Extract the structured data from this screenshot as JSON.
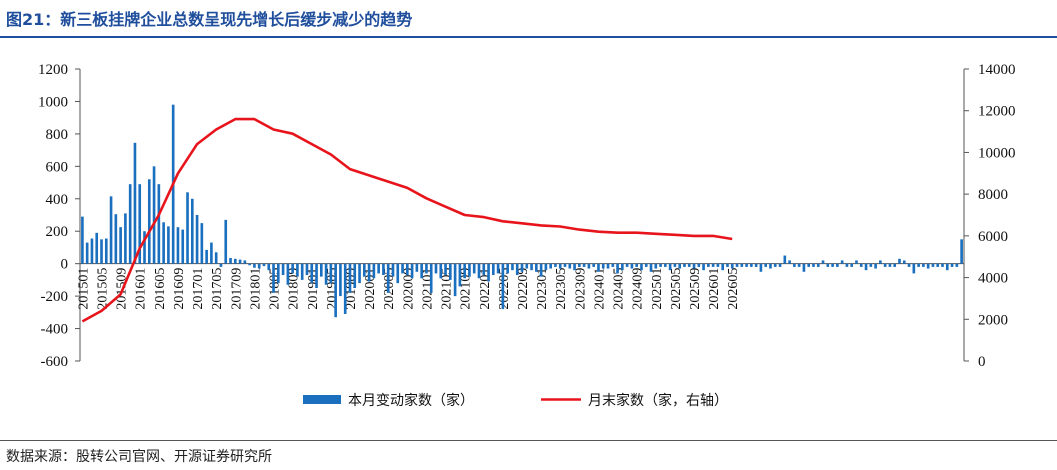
{
  "title": "图21：新三板挂牌企业总数呈现先增长后缓步减少的趋势",
  "source": "数据来源：股转公司官网、开源证券研究所",
  "colors": {
    "bar": "#1a6fbf",
    "line": "#e8141c",
    "title": "#1f4e9c"
  },
  "chart_data": {
    "type": "bar+line",
    "title": "图21：新三板挂牌企业总数呈现先增长后缓步减少的趋势",
    "xlabel": "",
    "ylabel": "",
    "y_left": {
      "lim": [
        -600,
        1200
      ],
      "ticks": [
        -600,
        -400,
        -200,
        0,
        200,
        400,
        600,
        800,
        1000,
        1200
      ]
    },
    "y_right": {
      "lim": [
        0,
        14000
      ],
      "ticks": [
        0,
        2000,
        4000,
        6000,
        8000,
        10000,
        12000,
        14000
      ]
    },
    "x_tick_labels": [
      "201501",
      "201505",
      "201509",
      "201601",
      "201605",
      "201609",
      "201701",
      "201705",
      "201709",
      "201801",
      "201805",
      "201809",
      "201901",
      "201905",
      "201909",
      "202001",
      "202005",
      "202009",
      "202101",
      "202105",
      "202109",
      "202201",
      "202205",
      "202209",
      "202301",
      "202305",
      "202309",
      "202401",
      "202405",
      "202409",
      "202501",
      "202505",
      "202509",
      "202601",
      "202605"
    ],
    "legend": {
      "position": "bottom",
      "bar_label": "本月变动家数（家）",
      "line_label": "月末家数（家，右轴）"
    },
    "series": [
      {
        "name": "本月变动家数（家）",
        "axis": "left",
        "type": "bar",
        "values": [
          290,
          130,
          155,
          190,
          150,
          155,
          415,
          305,
          225,
          310,
          490,
          745,
          490,
          200,
          520,
          600,
          490,
          255,
          230,
          980,
          225,
          210,
          440,
          400,
          300,
          250,
          85,
          130,
          70,
          -20,
          270,
          35,
          30,
          25,
          20,
          -10,
          -25,
          -30,
          -15,
          -40,
          -180,
          -120,
          -70,
          -130,
          -60,
          -80,
          -100,
          -70,
          -120,
          -150,
          -80,
          -130,
          -120,
          -330,
          -200,
          -310,
          -180,
          -150,
          -120,
          -80,
          -110,
          -90,
          -60,
          -70,
          -180,
          -80,
          -120,
          -60,
          -70,
          -90,
          -50,
          -90,
          -60,
          -180,
          -60,
          -90,
          -70,
          -100,
          -200,
          -140,
          -90,
          -80,
          -60,
          -90,
          -70,
          -110,
          -70,
          -60,
          -280,
          -60,
          -40,
          -70,
          -50,
          -30,
          -40,
          -50,
          -80,
          -40,
          -30,
          -20,
          -30,
          -20,
          -30,
          -40,
          -20,
          -20,
          -30,
          -20,
          -50,
          -30,
          -30,
          -20,
          -60,
          -40,
          -20,
          -30,
          -20,
          -40,
          -20,
          -50,
          -30,
          -20,
          -20,
          -40,
          -20,
          -30,
          -20,
          -20,
          -30,
          -20,
          -40,
          -20,
          -20,
          -20,
          -40,
          -20,
          -30,
          -20,
          -20,
          -20,
          -20,
          -20,
          -50,
          -20,
          -30,
          -20,
          -20,
          50,
          20,
          -20,
          -20,
          -50,
          -20,
          -20,
          -20,
          20,
          -20,
          -20,
          -20,
          20,
          -20,
          -20,
          20,
          -20,
          -40,
          -20,
          -30,
          20,
          -20,
          -20,
          -20,
          30,
          20,
          -20,
          -60,
          -20,
          -20,
          -30,
          -20,
          -20,
          -20,
          -40,
          -20,
          -20,
          150
        ]
      },
      {
        "name": "月末家数（家，右轴）",
        "axis": "right",
        "type": "line",
        "x_ticks": [
          0,
          4,
          8,
          12,
          16,
          20,
          24,
          28,
          32,
          36,
          40,
          44,
          48,
          52,
          56,
          60,
          64,
          68,
          72,
          76,
          80,
          84,
          88,
          92,
          96,
          100,
          104,
          108,
          112,
          116,
          120,
          124,
          128,
          132,
          136
        ],
        "values": [
          1900,
          2400,
          3200,
          5400,
          7000,
          9000,
          10400,
          11100,
          11600,
          11600,
          11100,
          10900,
          10400,
          9900,
          9200,
          8900,
          8600,
          8300,
          7800,
          7400,
          7000,
          6900,
          6700,
          6600,
          6500,
          6450,
          6300,
          6200,
          6150,
          6150,
          6100,
          6050,
          6000,
          6000,
          5850
        ]
      }
    ]
  }
}
